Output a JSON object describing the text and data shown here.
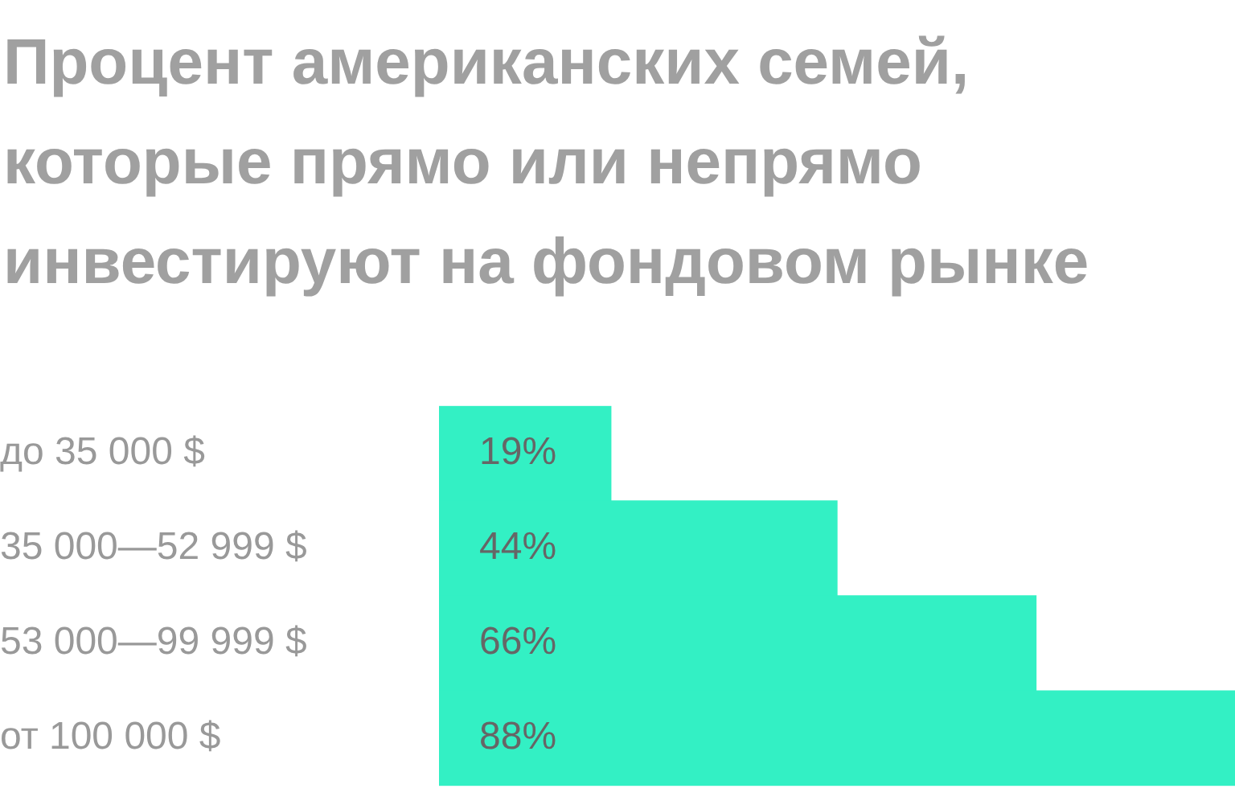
{
  "chart_data": {
    "type": "bar",
    "orientation": "horizontal",
    "title": "Процент американских семей, которые прямо или непрямо инвестируют на фондовом рынке",
    "categories": [
      "до 35 000 $",
      "35 000—52 999 $",
      "53 000—99 999 $",
      "от 100 000 $"
    ],
    "values": [
      19,
      44,
      66,
      88
    ],
    "value_labels": [
      "19%",
      "44%",
      "66%",
      "88%"
    ],
    "color": "#33f0c4",
    "xlim": [
      0,
      88
    ],
    "tick_labels": "y",
    "legend": false
  }
}
